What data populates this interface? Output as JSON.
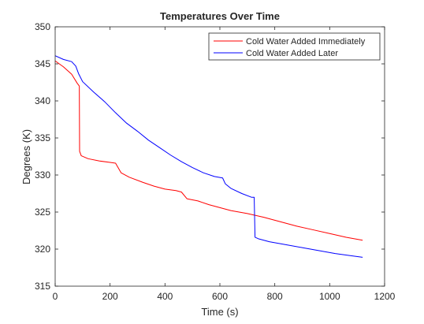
{
  "chart_data": {
    "type": "line",
    "title": "Temperatures Over Time",
    "xlabel": "Time (s)",
    "ylabel": "Degrees (K)",
    "xlim": [
      0,
      1200
    ],
    "ylim": [
      315,
      350
    ],
    "xticks": [
      0,
      200,
      400,
      600,
      800,
      1000,
      1200
    ],
    "yticks": [
      315,
      320,
      325,
      330,
      335,
      340,
      345,
      350
    ],
    "grid": false,
    "legend": "top-right",
    "series": [
      {
        "name": "Cold Water Added Immediately",
        "color": "#ff0000",
        "points": [
          [
            0,
            345.4
          ],
          [
            30,
            344.6
          ],
          [
            60,
            343.6
          ],
          [
            80,
            342.4
          ],
          [
            88,
            342.0
          ],
          [
            89,
            333.2
          ],
          [
            95,
            332.6
          ],
          [
            120,
            332.2
          ],
          [
            160,
            331.9
          ],
          [
            200,
            331.7
          ],
          [
            220,
            331.6
          ],
          [
            240,
            330.3
          ],
          [
            270,
            329.7
          ],
          [
            320,
            329.0
          ],
          [
            360,
            328.5
          ],
          [
            400,
            328.1
          ],
          [
            440,
            327.9
          ],
          [
            460,
            327.7
          ],
          [
            480,
            326.8
          ],
          [
            520,
            326.5
          ],
          [
            560,
            326.0
          ],
          [
            600,
            325.6
          ],
          [
            640,
            325.2
          ],
          [
            700,
            324.8
          ],
          [
            760,
            324.3
          ],
          [
            820,
            323.7
          ],
          [
            880,
            323.1
          ],
          [
            940,
            322.6
          ],
          [
            1000,
            322.1
          ],
          [
            1060,
            321.6
          ],
          [
            1120,
            321.2
          ]
        ]
      },
      {
        "name": "Cold Water Added Later",
        "color": "#0000ff",
        "points": [
          [
            0,
            346.1
          ],
          [
            30,
            345.6
          ],
          [
            60,
            345.3
          ],
          [
            75,
            344.7
          ],
          [
            85,
            343.7
          ],
          [
            100,
            342.6
          ],
          [
            140,
            341.2
          ],
          [
            180,
            339.9
          ],
          [
            220,
            338.4
          ],
          [
            260,
            337.0
          ],
          [
            300,
            335.9
          ],
          [
            340,
            334.7
          ],
          [
            380,
            333.7
          ],
          [
            420,
            332.7
          ],
          [
            460,
            331.8
          ],
          [
            500,
            331.0
          ],
          [
            540,
            330.3
          ],
          [
            580,
            329.8
          ],
          [
            610,
            329.6
          ],
          [
            620,
            328.8
          ],
          [
            640,
            328.2
          ],
          [
            680,
            327.5
          ],
          [
            715,
            327.0
          ],
          [
            725,
            327.0
          ],
          [
            728,
            321.6
          ],
          [
            740,
            321.4
          ],
          [
            780,
            321.0
          ],
          [
            840,
            320.6
          ],
          [
            900,
            320.2
          ],
          [
            960,
            319.8
          ],
          [
            1020,
            319.4
          ],
          [
            1080,
            319.1
          ],
          [
            1120,
            318.9
          ]
        ]
      }
    ]
  }
}
